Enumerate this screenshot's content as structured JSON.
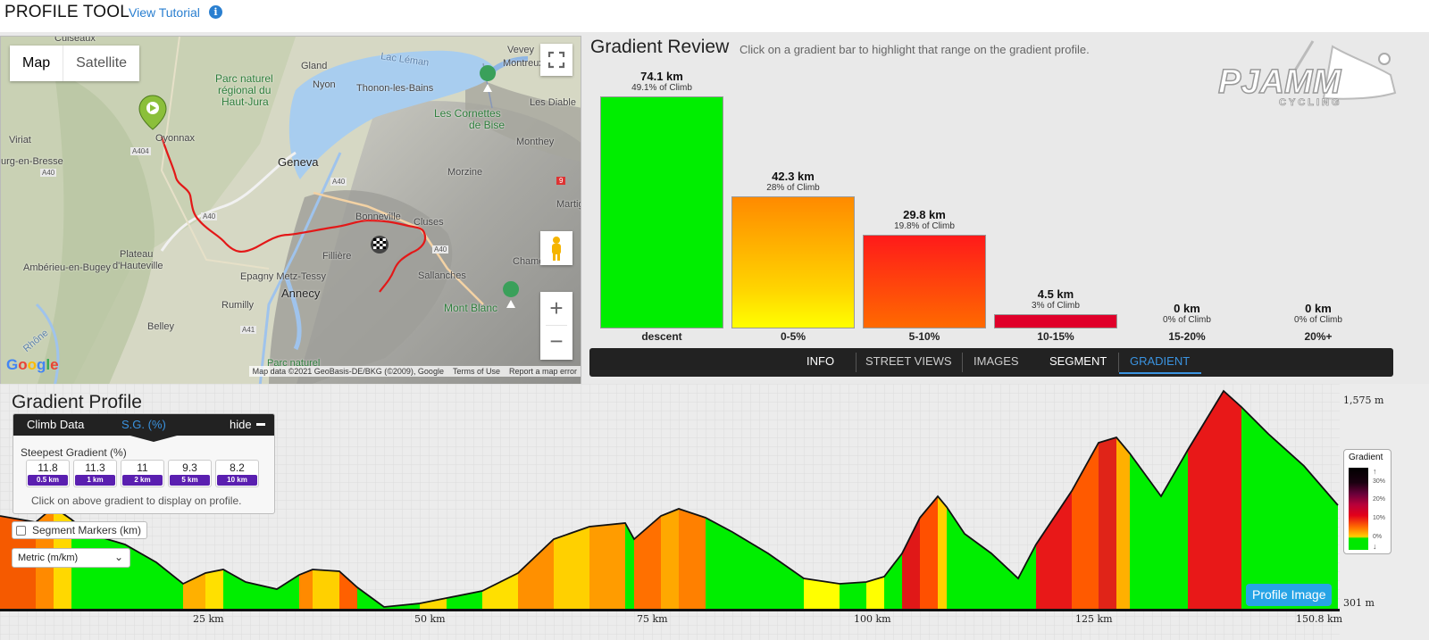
{
  "header": {
    "title": "PROFILE TOOL",
    "tutorial_link": "View Tutorial",
    "info_icon": "info-icon"
  },
  "map": {
    "type_map": "Map",
    "type_satellite": "Satellite",
    "labels": {
      "culseaux": "Culseaux",
      "vevey": "Vevey",
      "montreux": "Montreux",
      "lac_leman": "Lac Léman",
      "parc_jura_1": "Parc naturel",
      "parc_jura_2": "régional du",
      "parc_jura_3": "Haut-Jura",
      "gland": "Gland",
      "nyon": "Nyon",
      "thonon": "Thonon-les-Bains",
      "cornettes_1": "Les Cornettes",
      "cornettes_2": "de Bise",
      "les_diable": "Les Diable",
      "viriat": "Viriat",
      "oyonnax": "Oyonnax",
      "bourg": "urg-en-Bresse",
      "geneva": "Geneva",
      "monthey": "Monthey",
      "morzine": "Morzine",
      "bonneville": "Bonneville",
      "cluses": "Cluses",
      "martig": "Martig",
      "plateau_1": "Plateau",
      "plateau_2": "d'Hauteville",
      "fillere": "Fillière",
      "chamonix": "Chamonix",
      "amberieu": "Ambérieu-en-Bugey",
      "epagny": "Epagny Metz-Tessy",
      "annecy": "Annecy",
      "sallanches": "Sallanches",
      "mont_blanc": "Mont Blanc",
      "rumilly": "Rumilly",
      "rhone": "Rhône",
      "belley": "Belley",
      "parc_naturel_bottom": "Parc naturel",
      "road_a40_1": "A40",
      "road_a40_2": "A40",
      "road_a40_3": "A40",
      "road_a40_4": "A40",
      "road_a404": "A404",
      "road_a41": "A41",
      "road_9": "9"
    },
    "google": "Google",
    "attribution": "Map data ©2021 GeoBasis-DE/BKG (©2009), Google",
    "terms": "Terms of Use",
    "report": "Report a map error"
  },
  "gradient_review": {
    "title": "Gradient Review",
    "hint": "Click on a gradient bar to highlight that range on the gradient profile.",
    "logo_text": "PJAMM",
    "logo_sub": "CYCLING",
    "bars": [
      {
        "km": "74.1 km",
        "pct": "49.1% of Climb",
        "category": "descent",
        "share": 0.491,
        "color": "#00ee00"
      },
      {
        "km": "42.3 km",
        "pct": "28% of Climb",
        "category": "0-5%",
        "share": 0.28
      },
      {
        "km": "29.8 km",
        "pct": "19.8% of Climb",
        "category": "5-10%",
        "share": 0.198
      },
      {
        "km": "4.5 km",
        "pct": "3% of Climb",
        "category": "10-15%",
        "share": 0.03
      },
      {
        "km": "0 km",
        "pct": "0% of Climb",
        "category": "15-20%",
        "share": 0
      },
      {
        "km": "0 km",
        "pct": "0% of Climb",
        "category": "20%+",
        "share": 0
      }
    ],
    "tabs": {
      "info": "INFO",
      "street_views": "STREET VIEWS",
      "images": "IMAGES",
      "segment": "SEGMENT",
      "gradient": "GRADIENT"
    }
  },
  "gradient_profile": {
    "title": "Gradient Profile",
    "climb_tabs": {
      "climb_data": "Climb Data",
      "sg": "S.G. (%)",
      "hide": "hide"
    },
    "steepest_label": "Steepest Gradient (%)",
    "steepest": [
      {
        "value": "11.8",
        "dist": "0.5 km"
      },
      {
        "value": "11.3",
        "dist": "1 km"
      },
      {
        "value": "11",
        "dist": "2 km"
      },
      {
        "value": "9.3",
        "dist": "5 km"
      },
      {
        "value": "8.2",
        "dist": "10 km"
      }
    ],
    "note": "Click on above gradient to display on profile.",
    "segment_markers": "Segment Markers (km)",
    "units_select": "Metric (m/km)",
    "legend": {
      "title": "Gradient",
      "ticks": [
        "30%",
        "20%",
        "10%",
        "0%"
      ]
    },
    "profile_image_button": "Profile Image",
    "elev_max": "1,575 m",
    "elev_min": "301 m",
    "x_ticks": [
      "25 km",
      "50 km",
      "75 km",
      "100 km",
      "125 km",
      "150.8 km"
    ]
  }
}
